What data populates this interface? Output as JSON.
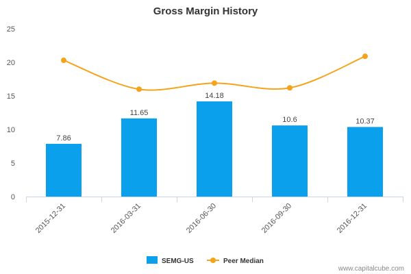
{
  "chart_data": {
    "type": "bar",
    "title": "Gross Margin History",
    "categories": [
      "2015-12-31",
      "2016-03-31",
      "2016-06-30",
      "2016-09-30",
      "2016-12-31"
    ],
    "series": [
      {
        "name": "SEMG-US",
        "kind": "bar",
        "color": "#0aa0ec",
        "values": [
          7.86,
          11.65,
          14.18,
          10.6,
          10.37
        ],
        "labels": [
          "7.86",
          "11.65",
          "14.18",
          "10.6",
          "10.37"
        ]
      },
      {
        "name": "Peer Median",
        "kind": "line",
        "color": "#f5a31a",
        "values": [
          20.3,
          16.0,
          16.9,
          16.2,
          20.9
        ]
      }
    ],
    "ylim": [
      0,
      25
    ],
    "yticks": [
      0,
      5,
      10,
      15,
      20,
      25
    ],
    "xlabel": "",
    "ylabel": "",
    "grid": false,
    "legend": "bottom-center"
  },
  "watermark": "www.capitalcube.com"
}
